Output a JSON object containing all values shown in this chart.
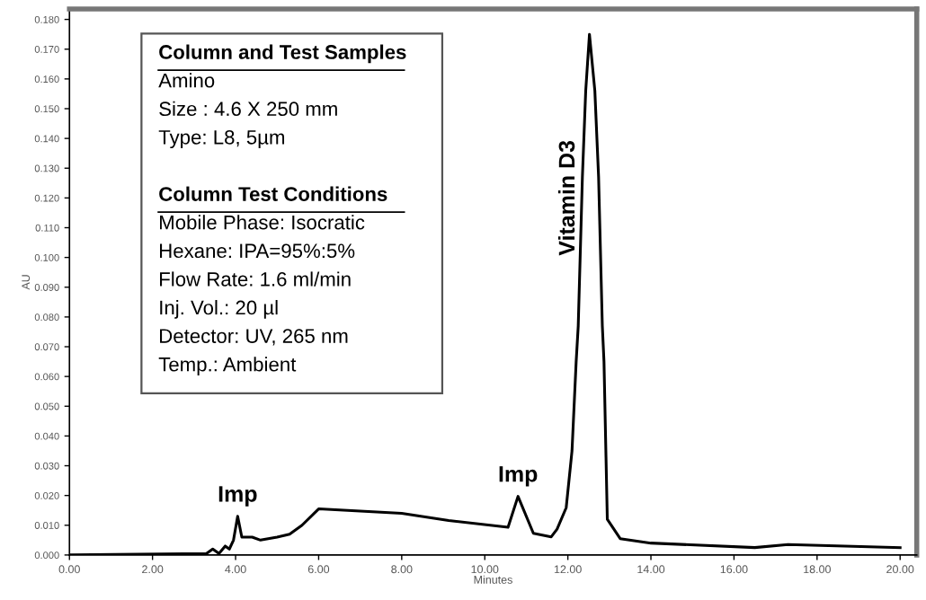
{
  "chart_data": {
    "type": "line",
    "xlabel": "Minutes",
    "ylabel": "AU",
    "x": [
      0,
      3.3,
      3.45,
      3.6,
      3.75,
      3.85,
      3.95,
      4.05,
      4.15,
      4.4,
      4.6,
      5.0,
      5.3,
      5.6,
      6.0,
      8.0,
      9.13,
      10.56,
      10.8,
      11.17,
      11.6,
      11.74,
      11.96,
      12.1,
      12.2,
      12.25,
      12.35,
      12.43,
      12.52,
      12.65,
      12.74,
      12.83,
      12.87,
      12.95,
      13.26,
      14.0,
      16.5,
      17.3,
      20.0
    ],
    "series": [
      {
        "color": "#000000",
        "values": [
          0.0,
          0.0005,
          0.002,
          0.0005,
          0.003,
          0.002,
          0.005,
          0.013,
          0.006,
          0.006,
          0.005,
          0.006,
          0.007,
          0.01,
          0.0155,
          0.014,
          0.0116,
          0.0093,
          0.0197,
          0.0073,
          0.0061,
          0.0087,
          0.0159,
          0.035,
          0.065,
          0.077,
          0.127,
          0.156,
          0.175,
          0.156,
          0.127,
          0.077,
          0.065,
          0.012,
          0.0055,
          0.004,
          0.0025,
          0.0035,
          0.0025
        ]
      }
    ],
    "xlim": [
      0,
      20.4
    ],
    "ylim": [
      0,
      0.1835
    ],
    "xticks": [
      {
        "value": 0,
        "label": "0.00"
      },
      {
        "value": 2,
        "label": "2.00"
      },
      {
        "value": 4,
        "label": "4.00"
      },
      {
        "value": 6,
        "label": "6.00"
      },
      {
        "value": 8,
        "label": "8.00"
      },
      {
        "value": 10,
        "label": "10.00"
      },
      {
        "value": 12,
        "label": "12.00"
      },
      {
        "value": 14,
        "label": "14.00"
      },
      {
        "value": 16,
        "label": "16.00"
      },
      {
        "value": 18,
        "label": "18.00"
      },
      {
        "value": 20,
        "label": "20.00"
      }
    ],
    "yticks": [
      {
        "value": 0,
        "label": "0.000"
      },
      {
        "value": 0.01,
        "label": "0.010"
      },
      {
        "value": 0.02,
        "label": "0.020"
      },
      {
        "value": 0.03,
        "label": "0.030"
      },
      {
        "value": 0.04,
        "label": "0.040"
      },
      {
        "value": 0.05,
        "label": "0.050"
      },
      {
        "value": 0.06,
        "label": "0.060"
      },
      {
        "value": 0.07,
        "label": "0.070"
      },
      {
        "value": 0.08,
        "label": "0.080"
      },
      {
        "value": 0.09,
        "label": "0.090"
      },
      {
        "value": 0.1,
        "label": "0.100"
      },
      {
        "value": 0.11,
        "label": "0.110"
      },
      {
        "value": 0.12,
        "label": "0.120"
      },
      {
        "value": 0.13,
        "label": "0.130"
      },
      {
        "value": 0.14,
        "label": "0.140"
      },
      {
        "value": 0.15,
        "label": "0.150"
      },
      {
        "value": 0.16,
        "label": "0.160"
      },
      {
        "value": 0.17,
        "label": "0.170"
      },
      {
        "value": 0.18,
        "label": "0.180"
      }
    ],
    "grid": false,
    "legend": false,
    "marker": "none",
    "line_style": "solid",
    "annotations": [
      {
        "text": "Imp",
        "x": 4.05,
        "y": 0.013
      },
      {
        "text": "Imp",
        "x": 10.8,
        "y": 0.0197
      },
      {
        "text": "Vitamin D3",
        "x": 12.52,
        "y": 0.12
      },
      "Column and Test Samples\nAmino\nSize : 4.6 X 250 mm\nType: L8, 5µm",
      "Column Test Conditions\nMobile Phase: Isocratic\nHexane: IPA=95%:5%\nFlow Rate: 1.6 ml/min\nInj. Vol.: 20 µl\nDetector: UV, 265 nm\nTemp.: Ambient"
    ]
  }
}
